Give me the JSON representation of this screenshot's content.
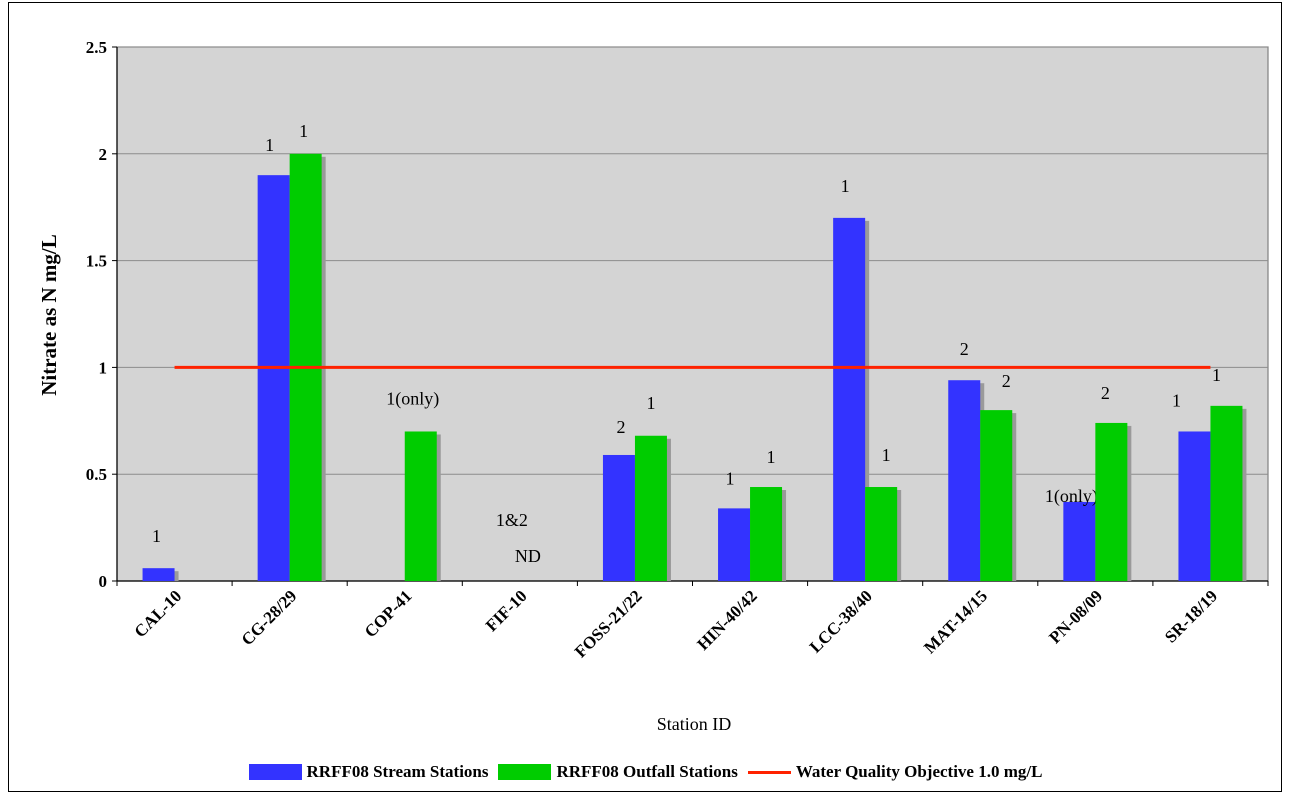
{
  "chart_data": {
    "type": "bar",
    "title": "",
    "xlabel": "Station ID",
    "ylabel": "Nitrate as N mg/L",
    "ylim": [
      0,
      2.5
    ],
    "yticks": [
      "0",
      "0.5",
      "1",
      "1.5",
      "2",
      "2.5"
    ],
    "categories": [
      "CAL-10",
      "CG-28/29",
      "COP-41",
      "FIF-10",
      "FOSS-21/22",
      "HIN-40/42",
      "LCC-38/40",
      "MAT-14/15",
      "PN-08/09",
      "SR-18/19"
    ],
    "series": [
      {
        "name": "RRFF08 Stream Stations",
        "color": "#3333ff",
        "values": [
          0.06,
          1.9,
          null,
          null,
          0.59,
          0.34,
          1.7,
          0.94,
          0.37,
          0.7
        ],
        "labels": [
          "1",
          "1",
          "",
          "",
          "2",
          "1",
          "1",
          "2",
          "1(only)",
          "1"
        ]
      },
      {
        "name": "RRFF08 Outfall Stations",
        "color": "#00cc00",
        "values": [
          null,
          2.0,
          0.7,
          null,
          0.68,
          0.44,
          0.44,
          0.8,
          0.74,
          0.82
        ],
        "labels": [
          "",
          "1",
          "1(only)",
          "",
          "1",
          "1",
          "1",
          "2",
          "2",
          "1"
        ]
      }
    ],
    "reference_line": {
      "name": "Water Quality Objective 1.0 mg/L",
      "value": 1.0,
      "color": "#ff2200"
    },
    "annotations": [
      {
        "category": "FIF-10",
        "lines": [
          "1&2",
          "ND"
        ]
      }
    ],
    "grid": true,
    "plot_background": "#d4d4d4",
    "legend_position": "bottom"
  }
}
